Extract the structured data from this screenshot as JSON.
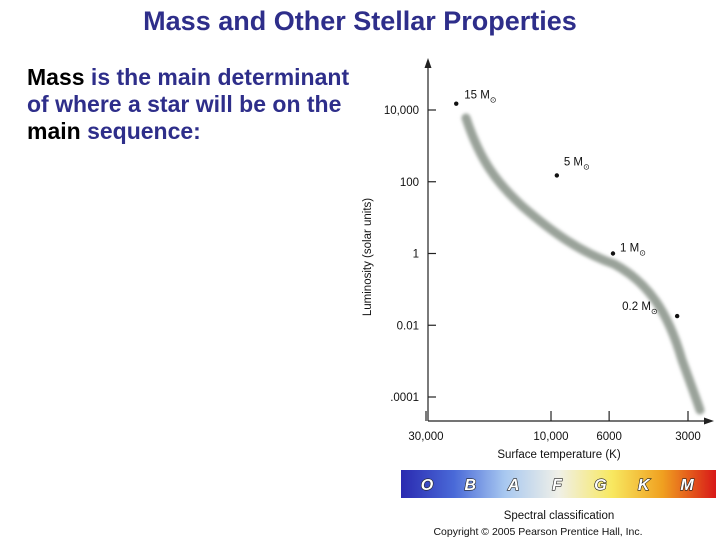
{
  "slide": {
    "title": "Mass and Other Stellar Properties",
    "body": {
      "segments": [
        {
          "text": "Mass",
          "color": "dark"
        },
        {
          "text": " is the main determinant of where a star will be on the ",
          "color": "blue"
        },
        {
          "text": "main",
          "color": "dark"
        },
        {
          "text": " sequence:",
          "color": "blue"
        }
      ]
    }
  },
  "diagram": {
    "y_axis_label": "Luminosity (solar units)",
    "y_ticks": [
      {
        "label": "10,000",
        "value": 10000
      },
      {
        "label": "100",
        "value": 100
      },
      {
        "label": "1",
        "value": 1
      },
      {
        "label": "0.01",
        "value": 0.01
      },
      {
        "label": ".0001",
        "value": 0.0001
      }
    ],
    "x_axis_label": "Surface temperature (K)",
    "x_ticks": [
      {
        "label": "30,000",
        "value": 30000
      },
      {
        "label": "10,000",
        "value": 10000
      },
      {
        "label": "6000",
        "value": 6000
      },
      {
        "label": "3000",
        "value": 3000
      }
    ],
    "sun_symbol": "⊙",
    "stars": [
      {
        "label": "15 M",
        "temperature": 23000,
        "luminosity": 15000
      },
      {
        "label": "5 M",
        "temperature": 9500,
        "luminosity": 150
      },
      {
        "label": "1 M",
        "temperature": 5800,
        "luminosity": 1
      },
      {
        "label": "0.2 M",
        "temperature": 3300,
        "luminosity": 0.018
      }
    ],
    "main_sequence_color": "#9aa29a",
    "spectral_bar": {
      "title": "Spectral classification",
      "classes": [
        "O",
        "B",
        "A",
        "F",
        "G",
        "K",
        "M"
      ],
      "gradient": [
        "#2a2ab0",
        "#4a6ad8",
        "#a8c8f0",
        "#f0f0e8",
        "#f8e860",
        "#f0a020",
        "#d81818"
      ]
    },
    "copyright": "Copyright © 2005 Pearson Prentice Hall, Inc."
  }
}
